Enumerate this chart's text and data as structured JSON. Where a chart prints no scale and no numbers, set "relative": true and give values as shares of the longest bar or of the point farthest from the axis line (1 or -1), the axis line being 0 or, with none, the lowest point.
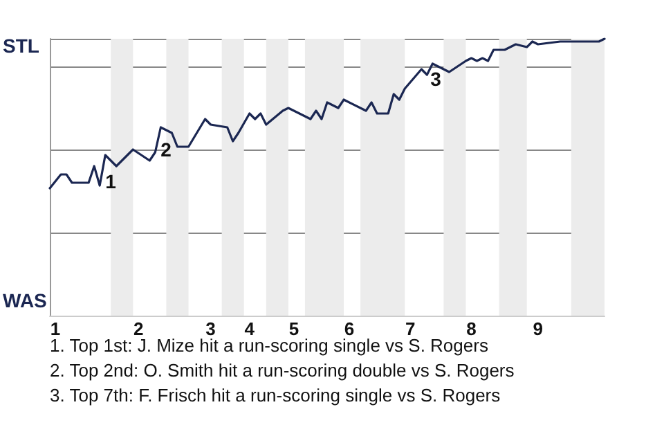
{
  "chart_data": {
    "type": "line",
    "relative": true,
    "categories": [
      null,
      "1",
      null,
      null,
      null,
      null,
      null,
      null,
      null,
      null,
      null,
      null,
      null,
      null,
      null,
      null,
      "2",
      null,
      null,
      null,
      null,
      null,
      null,
      null,
      null,
      null,
      null,
      null,
      null,
      "3",
      null,
      null,
      null,
      null,
      null,
      null,
      "4",
      null,
      null,
      null,
      null,
      null,
      null,
      null,
      "5",
      null,
      null,
      null,
      null,
      null,
      null,
      null,
      null,
      null,
      "6",
      null,
      null,
      null,
      null,
      null,
      null,
      null,
      null,
      null,
      null,
      "7",
      null,
      null,
      null,
      null,
      null,
      null,
      null,
      null,
      null,
      null,
      "8",
      null,
      null,
      null,
      null,
      null,
      null,
      null,
      null,
      null,
      null,
      null,
      "9",
      null,
      null,
      null,
      null,
      null,
      null,
      null,
      null,
      null,
      null,
      null,
      null
    ],
    "series": [
      {
        "color": "#1b2752",
        "values": [
          0.46,
          null,
          0.51,
          0.51,
          0.48,
          null,
          null,
          0.48,
          0.54,
          0.47,
          0.58,
          null,
          0.54,
          0.56,
          null,
          0.6,
          null,
          null,
          0.56,
          0.59,
          0.68,
          null,
          0.66,
          0.61,
          null,
          0.61,
          null,
          null,
          0.71,
          0.69,
          null,
          null,
          0.68,
          0.63,
          0.66,
          null,
          0.73,
          0.71,
          0.73,
          0.69,
          null,
          null,
          0.74,
          0.75,
          null,
          null,
          null,
          0.71,
          0.74,
          0.71,
          0.77,
          null,
          0.75,
          0.78,
          null,
          null,
          null,
          0.74,
          0.77,
          0.73,
          null,
          0.73,
          0.8,
          0.78,
          0.82,
          null,
          null,
          0.89,
          0.87,
          0.91,
          0.9,
          null,
          0.88,
          null,
          null,
          0.92,
          0.93,
          0.92,
          0.93,
          0.92,
          0.96,
          null,
          0.96,
          null,
          0.98,
          null,
          0.97,
          0.99,
          0.98,
          null,
          null,
          null,
          0.99,
          null,
          0.99,
          null,
          null,
          0.99,
          null,
          0.99,
          1
        ],
        "line_style": "solid"
      }
    ],
    "grid": "y",
    "marker": "none",
    "annotations": [
      "STL",
      "WAS",
      "1",
      "2",
      "3",
      "1. Top 1st: J. Mize hit a run-scoring single vs S. Rogers",
      "2. Top 2nd: O. Smith hit a run-scoring double vs S. Rogers",
      "3. Top 7th: F. Frisch hit a run-scoring single vs S. Rogers"
    ]
  }
}
